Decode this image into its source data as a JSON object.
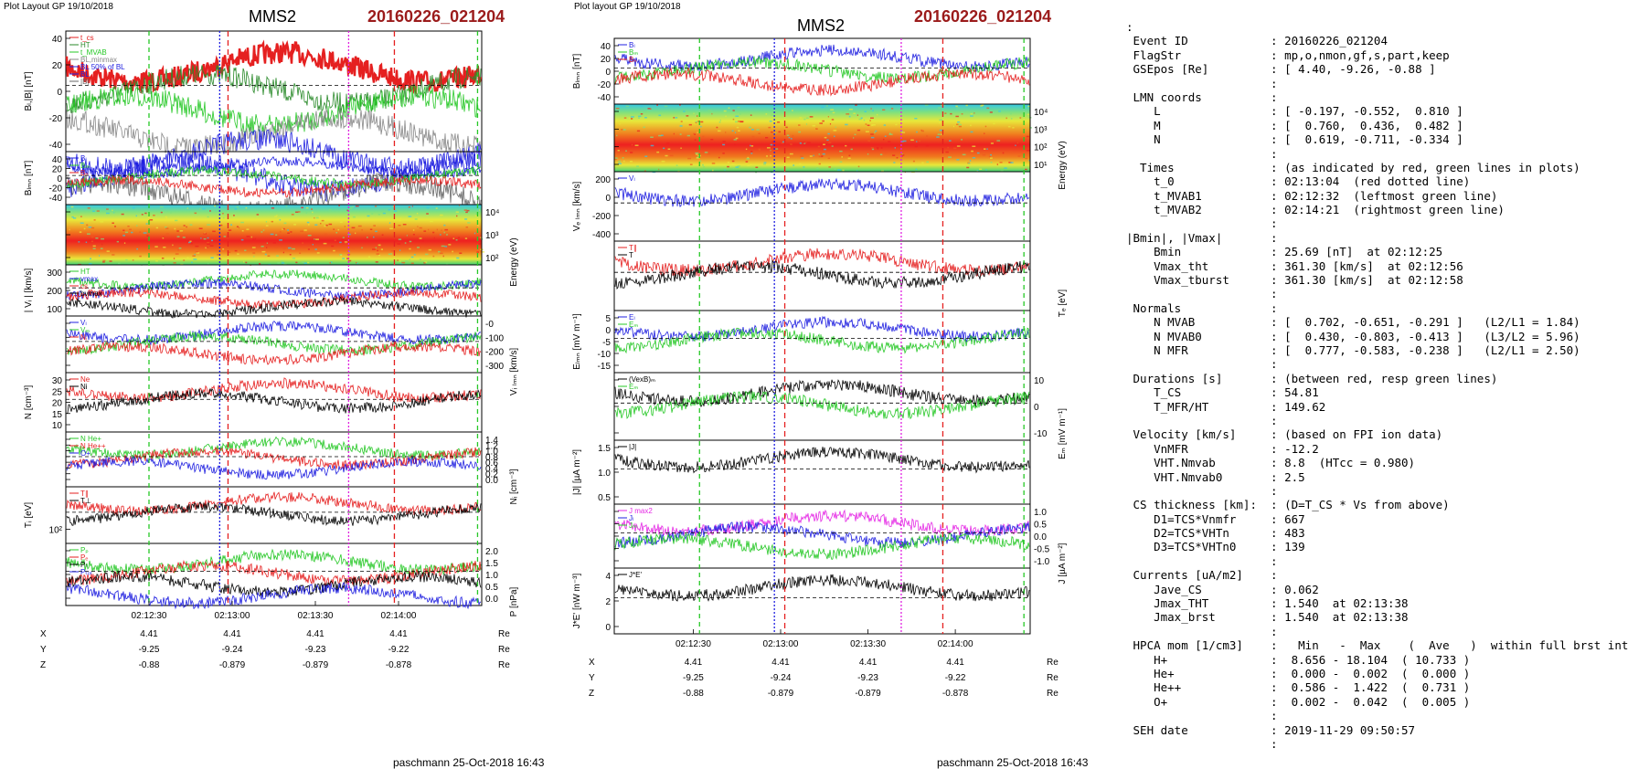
{
  "left": {
    "header": "Plot Layout GP 19/10/2018",
    "spacecraft": "MMS2",
    "event": "20160226_021204",
    "footer": "paschmann 25-Oct-2018 16:43",
    "panels": [
      {
        "ylabel": "Bₗ,|B| [nT]",
        "ticks": [
          "40",
          "20",
          "0",
          "-20",
          "-40"
        ],
        "legend": [
          "t_cs",
          "HT",
          "t_MVAB",
          "BL,minmax",
          "BL 50% of BL",
          "BL",
          "|B|"
        ],
        "legend_colors": [
          "#e52020",
          "#2a8a2a",
          "#27c827",
          "#888888",
          "#2020e0",
          "#2020e0",
          "#666666"
        ]
      },
      {
        "ylabel": "Bₗₘₙ [nT]",
        "ticks": [
          "40",
          "20",
          "0",
          "-20",
          "-40"
        ],
        "legend": [
          "Bₗ",
          "Bₘ",
          "Bₙ"
        ],
        "legend_colors": [
          "#2020e0",
          "#27c827",
          "#e52020"
        ]
      },
      {
        "ylabel": "Energy (eV)",
        "ticks": [
          "10⁴",
          "10³",
          "10²"
        ]
      },
      {
        "ylabel": "| Vᵢ | [km/s]",
        "ticks": [
          "300",
          "200",
          "100"
        ],
        "legend": [
          "HT",
          "vmax",
          "cs",
          "bvmax"
        ],
        "legend_colors": [
          "#27c827",
          "#2020e0",
          "#e52020",
          "#000000"
        ]
      },
      {
        "ylabel": "Vᵢ ₗₘₙ [km/s]",
        "ticks": [
          "-0",
          "-100",
          "-200",
          "-300"
        ],
        "legend": [
          "Vₗ",
          "Vₘ",
          "Nᵢ"
        ],
        "legend_colors": [
          "#2020e0",
          "#27c827",
          "#e52020"
        ]
      },
      {
        "ylabel": "N [cm⁻³]",
        "ticks": [
          "30",
          "25",
          "20",
          "15",
          "10"
        ],
        "legend": [
          "Ne",
          "Ni"
        ],
        "legend_colors": [
          "#e52020",
          "#000000"
        ]
      },
      {
        "ylabel": "Nᵢ [cm⁻³]",
        "ticks": [
          "1.4",
          "1.2",
          "1.0",
          "0.8",
          "0.6",
          "0.4",
          "0.2",
          "0.0"
        ],
        "legend": [
          "N He+",
          "N He++",
          "O+"
        ],
        "legend_colors": [
          "#27c827",
          "#e52020",
          "#2020e0"
        ]
      },
      {
        "ylabel": "Tᵢ [eV]",
        "ticks": [
          "10²"
        ],
        "legend": [
          "T∥",
          "T⊥"
        ],
        "legend_colors": [
          "#e52020",
          "#000000"
        ]
      },
      {
        "ylabel": "P [nPa]",
        "ticks": [
          "2.0",
          "1.5",
          "1.0",
          "0.5",
          "0.0"
        ],
        "legend": [
          "Pₚ",
          "Pₑ",
          "Pₗ",
          "Pₜₒₜ"
        ],
        "legend_colors": [
          "#27c827",
          "#e52020",
          "#000000",
          "#2020e0"
        ]
      }
    ]
  },
  "middle": {
    "header": "Plot layout GP 19/10/2018",
    "spacecraft": "MMS2",
    "event": "20160226_021204",
    "footer": "paschmann 25-Oct-2018 16:43",
    "panels": [
      {
        "ylabel": "Bₗₘₙ [nT]",
        "ticks": [
          "40",
          "20",
          "0",
          "-20",
          "-40"
        ],
        "legend": [
          "Bₗ",
          "Bₘ",
          "Bₙ"
        ],
        "legend_colors": [
          "#2020e0",
          "#27c827",
          "#e52020"
        ]
      },
      {
        "ylabel": "Energy (eV)",
        "ticks": [
          "10⁴",
          "10³",
          "10²",
          "10¹"
        ]
      },
      {
        "ylabel": "Vₑ ₗₘₙ [km/s]",
        "ticks": [
          "200",
          "0",
          "-200",
          "-400"
        ],
        "legend": [
          "Vₗ"
        ],
        "legend_colors": [
          "#2020e0"
        ]
      },
      {
        "ylabel": "Tₑ [eV]",
        "ticks": [],
        "legend": [
          "T∥",
          "T"
        ],
        "legend_colors": [
          "#e52020",
          "#000000"
        ]
      },
      {
        "ylabel": "Eₗₘₙ [mV m⁻¹]",
        "ticks": [
          "5",
          "0",
          "-5",
          "-10",
          "-15"
        ],
        "legend": [
          "Eₗ",
          "Eₘ"
        ],
        "legend_colors": [
          "#2020e0",
          "#27c827"
        ]
      },
      {
        "ylabel": "Eₘ [mV m⁻¹]",
        "ticks": [
          "10",
          "0",
          "-10"
        ],
        "legend": [
          "(VexB)ₘ",
          "Eₘ"
        ],
        "legend_colors": [
          "#000000",
          "#27c827"
        ]
      },
      {
        "ylabel": "|J| [µA m⁻²]",
        "ticks": [
          "1.5",
          "1.0",
          "0.5"
        ],
        "legend": [
          "|J|"
        ],
        "legend_colors": [
          "#000000"
        ]
      },
      {
        "ylabel": "J [µA m⁻²]",
        "ticks": [
          "1.0",
          "0.5",
          "0.0",
          "-0.5",
          "-1.0"
        ],
        "legend": [
          "J max2",
          "Jₗ",
          "Jₘ"
        ],
        "legend_colors": [
          "#e529e5",
          "#2020e0",
          "#27c827"
        ]
      },
      {
        "ylabel": "J*E' [nW m⁻³]",
        "ticks": [
          "4",
          "2",
          "0"
        ],
        "legend": [
          "J*E'"
        ],
        "legend_colors": [
          "#000000"
        ]
      }
    ]
  },
  "time_ticks": [
    "02:12:30",
    "02:13:00",
    "02:13:30",
    "02:14:00"
  ],
  "position": {
    "rows": [
      {
        "label": "X",
        "values": [
          "4.41",
          "4.41",
          "4.41",
          "4.41"
        ],
        "unit": "Re"
      },
      {
        "label": "Y",
        "values": [
          "-9.25",
          "-9.24",
          "-9.23",
          "-9.22"
        ],
        "unit": "Re"
      },
      {
        "label": "Z",
        "values": [
          "-0.88",
          "-0.879",
          "-0.879",
          "-0.878"
        ],
        "unit": "Re"
      }
    ]
  },
  "colors": {
    "red": "#e52020",
    "green": "#27c827",
    "blue": "#2020e0",
    "magenta": "#e020e0",
    "event_red": "#9b1b1b"
  },
  "info_lines": [
    ":",
    " Event ID            : 20160226_021204",
    " FlagStr             : mp,o,nmon,gf,s,part,keep",
    " GSEpos [Re]         : [ 4.40, -9.26, -0.88 ]",
    "                     :",
    " LMN coords          :",
    "    L                : [ -0.197, -0.552,  0.810 ]",
    "    M                : [  0.760,  0.436,  0.482 ]",
    "    N                : [  0.619, -0.711, -0.334 ]",
    "                     :",
    "  Times              : (as indicated by red, green lines in plots)",
    "    t_0              : 02:13:04  (red dotted line)",
    "    t_MVAB1          : 02:12:32  (leftmost green line)",
    "    t_MVAB2          : 02:14:21  (rightmost green line)",
    "                     :",
    "|Bmin|, |Vmax|       :",
    "    Bmin             : 25.69 [nT]  at 02:12:25",
    "    Vmax_tht         : 361.30 [km/s]  at 02:12:56",
    "    Vmax_tburst      : 361.30 [km/s]  at 02:12:58",
    "                     :",
    " Normals             :",
    "    N MVAB           : [  0.702, -0.651, -0.291 ]   (L2/L1 = 1.84)",
    "    N MVAB0          : [  0.430, -0.803, -0.413 ]   (L3/L2 = 5.96)",
    "    N MFR            : [  0.777, -0.583, -0.238 ]   (L2/L1 = 2.50)",
    "                     :",
    " Durations [s]       : (between red, resp green lines)",
    "    T_CS             : 54.81",
    "    T_MFR/HT         : 149.62",
    "                     :",
    " Velocity [km/s]     : (based on FPI ion data)",
    "    VnMFR            : -12.2",
    "    VHT.Nmvab        : 8.8  (HTcc = 0.980)",
    "    VHT.Nmvab0       : 2.5",
    "                     :",
    " CS thickness [km]:  : (D=T_CS * Vs from above)",
    "    D1=TCS*Vnmfr     : 667",
    "    D2=TCS*VHTn      : 483",
    "    D3=TCS*VHTn0     : 139",
    "                     :",
    " Currents [uA/m2]    :",
    "    Jave_CS          : 0.062",
    "    Jmax_THT         : 1.540  at 02:13:38",
    "    Jmax_brst        : 1.540  at 02:13:38",
    "                     :",
    " HPCA mom [1/cm3]    :   Min   -  Max    (  Ave   )  within full brst int",
    "    H+               :  8.656 - 18.104  ( 10.733 )",
    "    He+              :  0.000 -  0.002  (  0.000 )",
    "    He++             :  0.586 -  1.422  (  0.731 )",
    "    O+               :  0.002 -  0.042  (  0.005 )",
    "                     :",
    " SEH date            : 2019-11-29 09:50:57",
    "                     :"
  ]
}
